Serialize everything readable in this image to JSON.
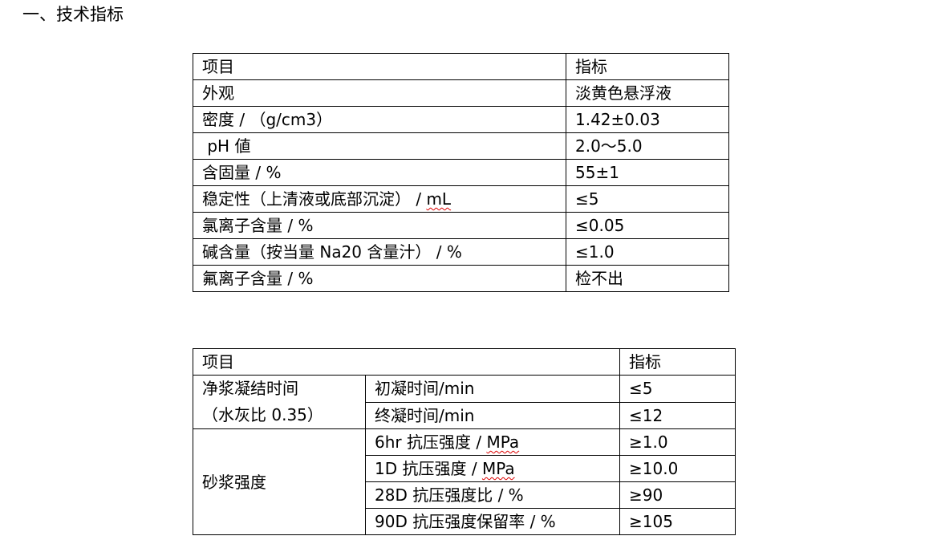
{
  "heading": "一、技术指标",
  "table1": {
    "header": [
      "项目",
      "指标"
    ],
    "rows": [
      [
        "外观",
        "淡黄色悬浮液"
      ],
      [
        "密度 / （g/cm3）",
        "1.42±0.03"
      ],
      [
        " pH 値",
        "2.0～5.0"
      ],
      [
        "含固量 / %",
        "55±1"
      ],
      [
        "稳定性（上清液或底部沉淀） / ",
        "≤5"
      ],
      [
        "氯离子含量 / %",
        "≤0.05"
      ],
      [
        "碱含量（按当量 Na20 含量汁） / %",
        "≤1.0"
      ],
      [
        "氟离子含量 / %",
        "检不出"
      ]
    ],
    "unit_ml": "mL"
  },
  "table2": {
    "header": [
      "项目",
      "指标"
    ],
    "group1": {
      "label_line1": "净浆凝结时间",
      "label_line2": "（水灰比 0.35）",
      "rows": [
        [
          "初凝时间/min",
          "≤5"
        ],
        [
          "终凝时间/min",
          "≤12"
        ]
      ]
    },
    "group2": {
      "label": "砂浆强度",
      "rows": [
        [
          "6hr 抗压强度 / ",
          "MPa",
          "≥1.0"
        ],
        [
          "1D 抗压强度 / ",
          "MPa",
          "≥10.0"
        ],
        [
          "28D 抗压强度比 / %",
          "",
          "≥90"
        ],
        [
          "90D 抗压强度保留率 / %",
          "",
          "≥105"
        ]
      ]
    }
  },
  "colors": {
    "border": "#000000",
    "spellcheck_underline": "#dd0000"
  }
}
